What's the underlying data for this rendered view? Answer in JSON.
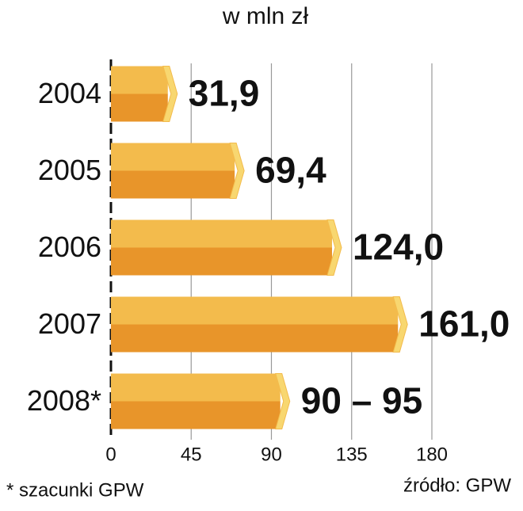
{
  "chart_data": {
    "type": "bar",
    "orientation": "horizontal",
    "title": "w mln zł",
    "categories": [
      "2004",
      "2005",
      "2006",
      "2007",
      "2008*"
    ],
    "values": [
      31.9,
      69.4,
      124.0,
      161.0,
      95
    ],
    "value_labels": [
      "31,9",
      "69,4",
      "124,0",
      "161,0",
      "90 – 95"
    ],
    "color": "#f0a830",
    "xlim": [
      0,
      180
    ],
    "xticks": [
      0,
      45,
      90,
      135,
      180
    ],
    "grid": true,
    "footnote": "* szacunki GPW",
    "source": "źródło: GPW"
  }
}
